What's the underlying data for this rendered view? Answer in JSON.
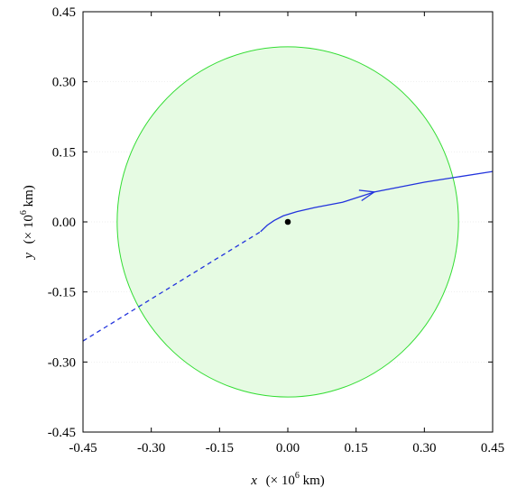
{
  "chart_data": {
    "type": "scatter",
    "xlim": [
      -0.45,
      0.45
    ],
    "ylim": [
      -0.45,
      0.45
    ],
    "xticks": [
      "-0.45",
      "-0.30",
      "-0.15",
      "0.00",
      "0.15",
      "0.30",
      "0.45"
    ],
    "yticks": [
      "0.45",
      "0.30",
      "0.15",
      "0.00",
      "-0.15",
      "-0.30",
      "-0.45"
    ],
    "xtick_values": [
      -0.45,
      -0.3,
      -0.15,
      0.0,
      0.15,
      0.3,
      0.45
    ],
    "ytick_values": [
      0.45,
      0.3,
      0.15,
      0.0,
      -0.15,
      -0.3,
      -0.45
    ],
    "xlabel": {
      "var": "x",
      "rest": "(× 10",
      "exp": "6",
      "unit": " km)"
    },
    "ylabel": {
      "var": "y",
      "rest": "(× 10",
      "exp": "6",
      "unit": " km)"
    },
    "grid": true,
    "circle": {
      "center": [
        0.0,
        0.0
      ],
      "radius": 0.375,
      "fill": "#e6fbe3",
      "stroke": "#33dd33"
    },
    "body": {
      "x": 0.0,
      "y": 0.0,
      "color": "#000000"
    },
    "incoming_path": {
      "style": "dashed",
      "color": "#2233dd",
      "points": [
        [
          -0.45,
          -0.255
        ],
        [
          -0.3,
          -0.165
        ],
        [
          -0.15,
          -0.075
        ],
        [
          -0.06,
          -0.021
        ]
      ]
    },
    "outgoing_path": {
      "style": "solid",
      "color": "#2233dd",
      "points": [
        [
          -0.06,
          -0.021
        ],
        [
          -0.045,
          -0.007
        ],
        [
          -0.03,
          0.003
        ],
        [
          -0.01,
          0.013
        ],
        [
          0.02,
          0.022
        ],
        [
          0.06,
          0.031
        ],
        [
          0.12,
          0.042
        ],
        [
          0.19,
          0.064
        ],
        [
          0.3,
          0.085
        ],
        [
          0.45,
          0.108
        ]
      ]
    },
    "arrow": {
      "x": 0.19,
      "y": 0.064
    }
  }
}
